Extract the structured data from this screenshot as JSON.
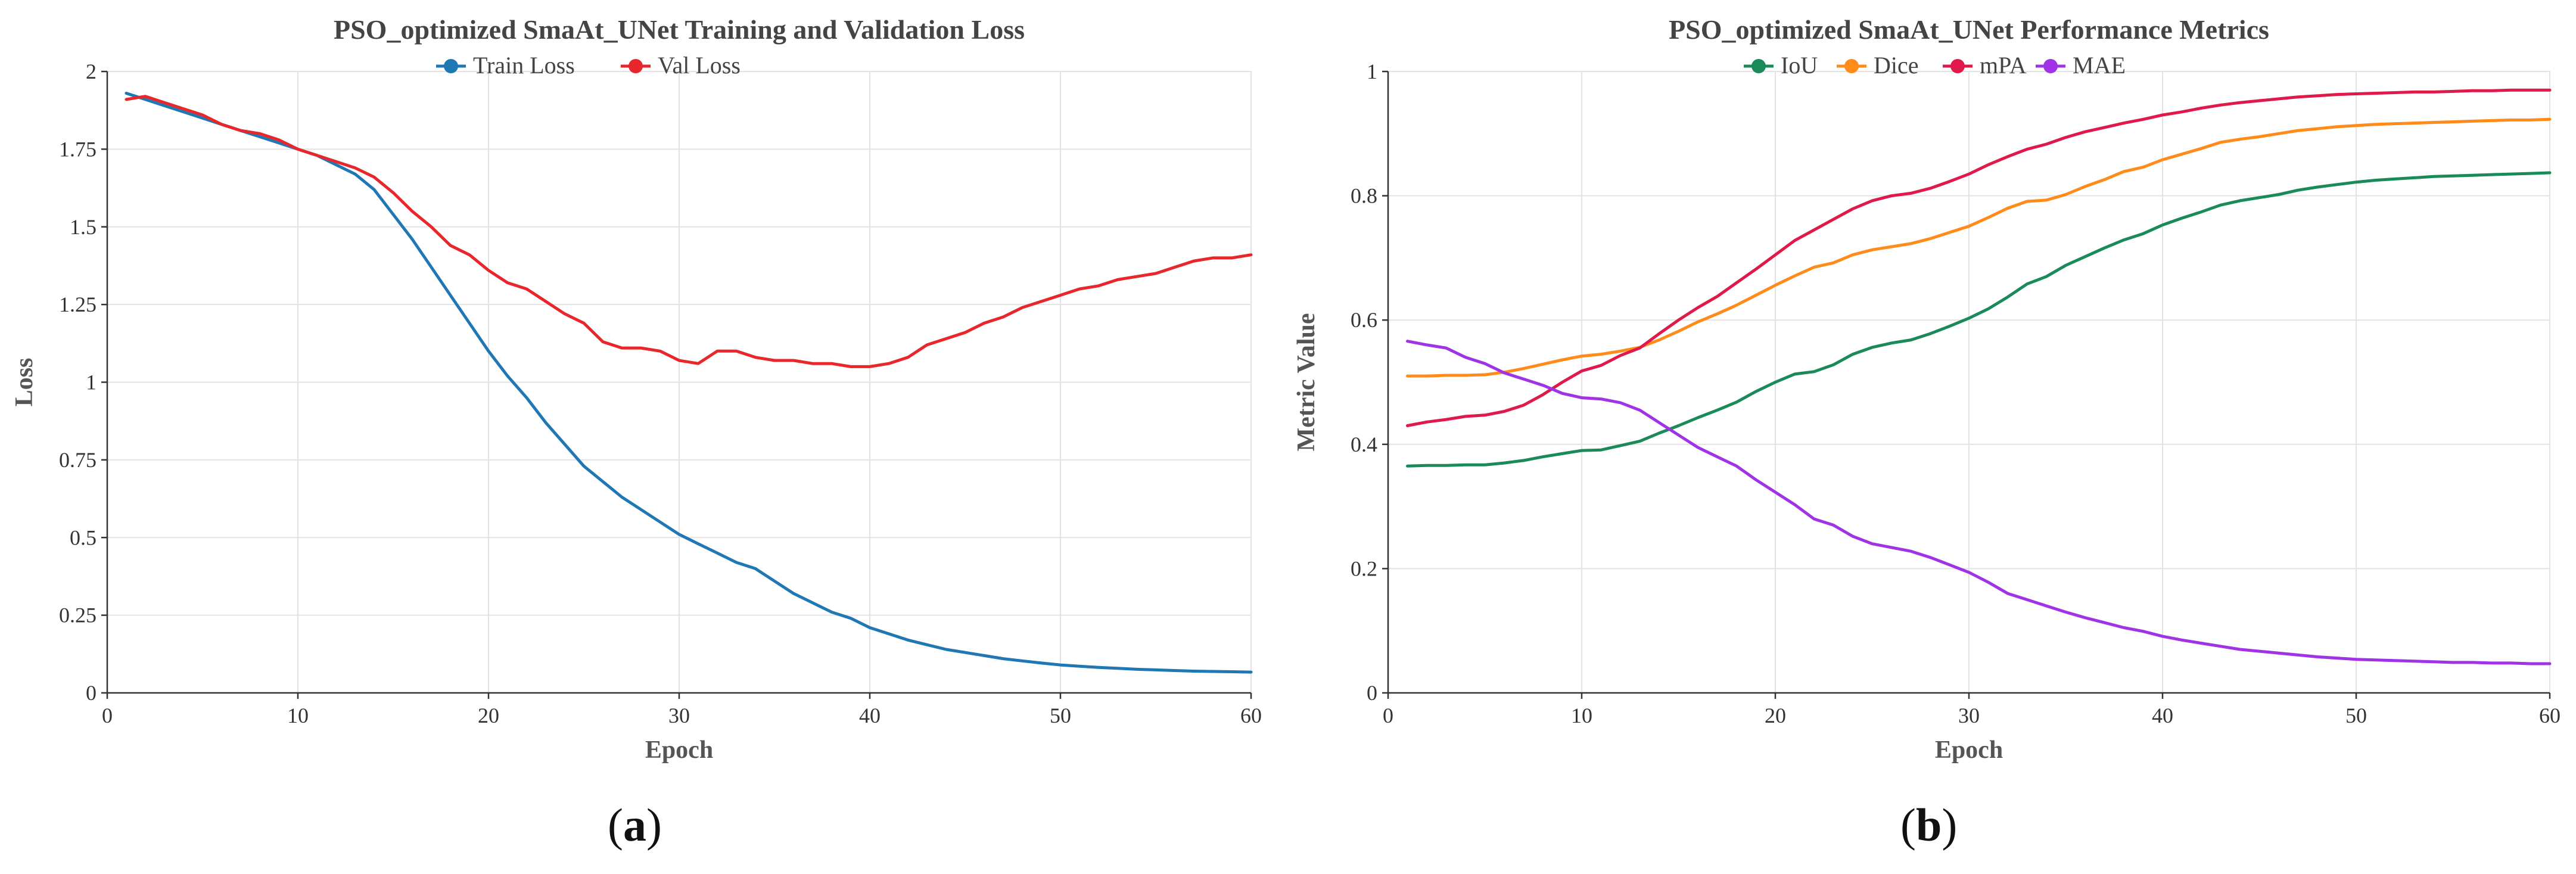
{
  "figure": {
    "panels": [
      {
        "label_open": "(",
        "label_letter": "a",
        "label_close": ")"
      },
      {
        "label_open": "(",
        "label_letter": "b",
        "label_close": ")"
      }
    ]
  },
  "chart_data": [
    {
      "type": "line",
      "title": "PSO_optimized SmaAt_UNet Training and Validation Loss",
      "xlabel": "Epoch",
      "ylabel": "Loss",
      "xlim": [
        0,
        60
      ],
      "ylim": [
        0,
        2
      ],
      "xticks": [
        0,
        10,
        20,
        30,
        40,
        50,
        60
      ],
      "xtick_labels": [
        "0",
        "10",
        "20",
        "30",
        "40",
        "50",
        "60"
      ],
      "yticks": [
        0,
        0.25,
        0.5,
        0.75,
        1,
        1.25,
        1.5,
        1.75,
        2
      ],
      "ytick_labels": [
        "0",
        "0.25",
        "0.5",
        "0.75",
        "1",
        "1.25",
        "1.5",
        "1.75",
        "2"
      ],
      "grid": true,
      "legend": "top-center",
      "x": [
        1,
        2,
        3,
        4,
        5,
        6,
        7,
        8,
        9,
        10,
        11,
        12,
        13,
        14,
        15,
        16,
        17,
        18,
        19,
        20,
        21,
        22,
        23,
        24,
        25,
        26,
        27,
        28,
        29,
        30,
        31,
        32,
        33,
        34,
        35,
        36,
        37,
        38,
        39,
        40,
        41,
        42,
        43,
        44,
        45,
        46,
        47,
        48,
        49,
        50,
        51,
        52,
        53,
        54,
        55,
        56,
        57,
        58,
        59,
        60
      ],
      "series": [
        {
          "name": "Train Loss",
          "color": "#1f77b4",
          "values": [
            1.93,
            1.91,
            1.89,
            1.87,
            1.85,
            1.83,
            1.81,
            1.79,
            1.77,
            1.75,
            1.73,
            1.7,
            1.67,
            1.62,
            1.54,
            1.46,
            1.37,
            1.28,
            1.19,
            1.1,
            1.02,
            0.95,
            0.87,
            0.8,
            0.73,
            0.68,
            0.63,
            0.59,
            0.55,
            0.51,
            0.48,
            0.45,
            0.42,
            0.4,
            0.36,
            0.32,
            0.29,
            0.26,
            0.24,
            0.21,
            0.19,
            0.17,
            0.155,
            0.14,
            0.13,
            0.12,
            0.11,
            0.103,
            0.096,
            0.09,
            0.086,
            0.082,
            0.079,
            0.076,
            0.074,
            0.072,
            0.07,
            0.069,
            0.068,
            0.067
          ]
        },
        {
          "name": "Val Loss",
          "color": "#e8262b",
          "values": [
            1.91,
            1.92,
            1.9,
            1.88,
            1.86,
            1.83,
            1.81,
            1.8,
            1.78,
            1.75,
            1.73,
            1.71,
            1.69,
            1.66,
            1.61,
            1.55,
            1.5,
            1.44,
            1.41,
            1.36,
            1.32,
            1.3,
            1.26,
            1.22,
            1.19,
            1.13,
            1.11,
            1.11,
            1.1,
            1.07,
            1.06,
            1.1,
            1.1,
            1.08,
            1.07,
            1.07,
            1.06,
            1.06,
            1.05,
            1.05,
            1.06,
            1.08,
            1.12,
            1.14,
            1.16,
            1.19,
            1.21,
            1.24,
            1.26,
            1.28,
            1.3,
            1.31,
            1.33,
            1.34,
            1.35,
            1.37,
            1.39,
            1.4,
            1.4,
            1.41
          ]
        }
      ]
    },
    {
      "type": "line",
      "title": "PSO_optimized SmaAt_UNet Performance Metrics",
      "xlabel": "Epoch",
      "ylabel": "Metric Value",
      "xlim": [
        0,
        60
      ],
      "ylim": [
        0,
        1
      ],
      "xticks": [
        0,
        10,
        20,
        30,
        40,
        50,
        60
      ],
      "xtick_labels": [
        "0",
        "10",
        "20",
        "30",
        "40",
        "50",
        "60"
      ],
      "yticks": [
        0,
        0.2,
        0.4,
        0.6,
        0.8,
        1
      ],
      "ytick_labels": [
        "0",
        "0.2",
        "0.4",
        "0.6",
        "0.8",
        "1"
      ],
      "grid": true,
      "legend": "top-center",
      "x": [
        1,
        2,
        3,
        4,
        5,
        6,
        7,
        8,
        9,
        10,
        11,
        12,
        13,
        14,
        15,
        16,
        17,
        18,
        19,
        20,
        21,
        22,
        23,
        24,
        25,
        26,
        27,
        28,
        29,
        30,
        31,
        32,
        33,
        34,
        35,
        36,
        37,
        38,
        39,
        40,
        41,
        42,
        43,
        44,
        45,
        46,
        47,
        48,
        49,
        50,
        51,
        52,
        53,
        54,
        55,
        56,
        57,
        58,
        59,
        60
      ],
      "series": [
        {
          "name": "IoU",
          "color": "#1a8a5a",
          "values": [
            0.365,
            0.366,
            0.366,
            0.367,
            0.367,
            0.37,
            0.374,
            0.38,
            0.385,
            0.39,
            0.391,
            0.398,
            0.405,
            0.418,
            0.43,
            0.443,
            0.455,
            0.468,
            0.485,
            0.5,
            0.513,
            0.517,
            0.528,
            0.545,
            0.556,
            0.563,
            0.568,
            0.578,
            0.59,
            0.603,
            0.618,
            0.637,
            0.658,
            0.67,
            0.688,
            0.702,
            0.716,
            0.729,
            0.739,
            0.753,
            0.764,
            0.774,
            0.785,
            0.792,
            0.797,
            0.802,
            0.809,
            0.814,
            0.818,
            0.822,
            0.825,
            0.827,
            0.829,
            0.831,
            0.832,
            0.833,
            0.834,
            0.835,
            0.836,
            0.837
          ]
        },
        {
          "name": "Dice",
          "color": "#ff8c1a",
          "values": [
            0.51,
            0.51,
            0.511,
            0.511,
            0.512,
            0.516,
            0.522,
            0.529,
            0.536,
            0.542,
            0.545,
            0.55,
            0.556,
            0.568,
            0.582,
            0.597,
            0.61,
            0.624,
            0.64,
            0.656,
            0.671,
            0.685,
            0.692,
            0.705,
            0.713,
            0.718,
            0.723,
            0.731,
            0.741,
            0.751,
            0.765,
            0.78,
            0.791,
            0.793,
            0.802,
            0.815,
            0.826,
            0.839,
            0.846,
            0.858,
            0.867,
            0.876,
            0.886,
            0.891,
            0.895,
            0.9,
            0.905,
            0.908,
            0.911,
            0.913,
            0.915,
            0.916,
            0.917,
            0.918,
            0.919,
            0.92,
            0.921,
            0.922,
            0.922,
            0.923
          ]
        },
        {
          "name": "mPA",
          "color": "#e0194b",
          "values": [
            0.43,
            0.436,
            0.44,
            0.445,
            0.447,
            0.453,
            0.463,
            0.48,
            0.5,
            0.518,
            0.527,
            0.543,
            0.555,
            0.578,
            0.6,
            0.62,
            0.638,
            0.66,
            0.682,
            0.705,
            0.728,
            0.745,
            0.762,
            0.779,
            0.792,
            0.8,
            0.804,
            0.812,
            0.823,
            0.835,
            0.85,
            0.863,
            0.875,
            0.883,
            0.894,
            0.903,
            0.91,
            0.917,
            0.923,
            0.93,
            0.935,
            0.941,
            0.946,
            0.95,
            0.953,
            0.956,
            0.959,
            0.961,
            0.963,
            0.964,
            0.965,
            0.966,
            0.967,
            0.967,
            0.968,
            0.969,
            0.969,
            0.97,
            0.97,
            0.97
          ]
        },
        {
          "name": "MAE",
          "color": "#a033e6",
          "values": [
            0.566,
            0.56,
            0.555,
            0.54,
            0.53,
            0.515,
            0.505,
            0.495,
            0.482,
            0.475,
            0.473,
            0.467,
            0.455,
            0.435,
            0.415,
            0.395,
            0.38,
            0.365,
            0.343,
            0.323,
            0.303,
            0.28,
            0.27,
            0.252,
            0.24,
            0.234,
            0.228,
            0.218,
            0.206,
            0.194,
            0.178,
            0.16,
            0.15,
            0.14,
            0.13,
            0.121,
            0.113,
            0.105,
            0.099,
            0.091,
            0.085,
            0.08,
            0.075,
            0.07,
            0.067,
            0.064,
            0.061,
            0.058,
            0.056,
            0.054,
            0.053,
            0.052,
            0.051,
            0.05,
            0.049,
            0.049,
            0.048,
            0.048,
            0.047,
            0.047
          ]
        }
      ]
    }
  ]
}
